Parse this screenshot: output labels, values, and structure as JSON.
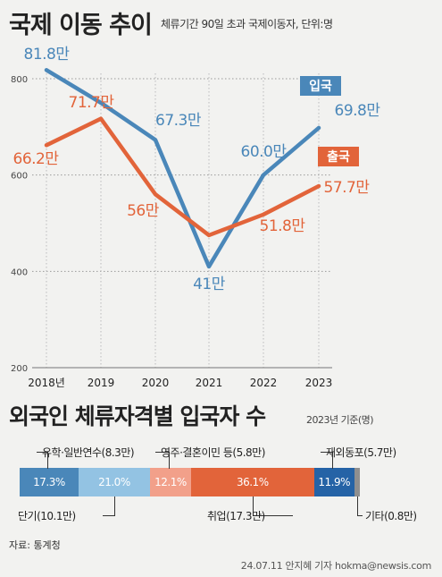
{
  "title": "국제 이동 추이",
  "subtitle": "체류기간 90일 초과 국제이동자, 단위:명",
  "chart_data": [
    {
      "type": "line",
      "categories": [
        "2018년",
        "2019",
        "2020",
        "2021",
        "2022",
        "2023"
      ],
      "ylim": [
        200,
        800
      ],
      "y_ticks": [
        "800",
        "600",
        "400",
        "200"
      ],
      "grid": true,
      "series": [
        {
          "name": "입국",
          "color": "#4a87b9",
          "values": [
            818,
            750,
            673,
            410,
            600,
            698
          ],
          "labels": [
            "81.8만",
            "",
            "67.3만",
            "41만",
            "60.0만",
            "69.8만"
          ]
        },
        {
          "name": "출국",
          "color": "#e2643a",
          "values": [
            662,
            717,
            560,
            475,
            518,
            577
          ],
          "labels": [
            "66.2만",
            "71.7만",
            "56만",
            "",
            "51.8만",
            "57.7만"
          ]
        }
      ]
    },
    {
      "type": "bar",
      "title": "외국인 체류자격별 입국자 수",
      "note": "2023년 기준(명)",
      "segments": [
        {
          "pct": "17.3%",
          "value": 17.3,
          "label": "유학·일반연수(8.3만)",
          "color": "#4a87b9"
        },
        {
          "pct": "21.0%",
          "value": 21.0,
          "label": "단기(10.1만)",
          "color": "#93c3e3"
        },
        {
          "pct": "12.1%",
          "value": 12.1,
          "label": "영주·결혼이민 등(5.8만)",
          "color": "#f2a08a"
        },
        {
          "pct": "36.1%",
          "value": 36.1,
          "label": "취업(17.3만)",
          "color": "#e2643a"
        },
        {
          "pct": "11.9%",
          "value": 11.9,
          "label": "재외동포(5.7만)",
          "color": "#2563a6"
        },
        {
          "pct": "",
          "value": 1.6,
          "label": "기타(0.8만)",
          "color": "#8f8f8f"
        }
      ]
    }
  ],
  "source": "자료: 통계청",
  "credit": "24.07.11 안지혜 기자  hokma@newsis.com"
}
